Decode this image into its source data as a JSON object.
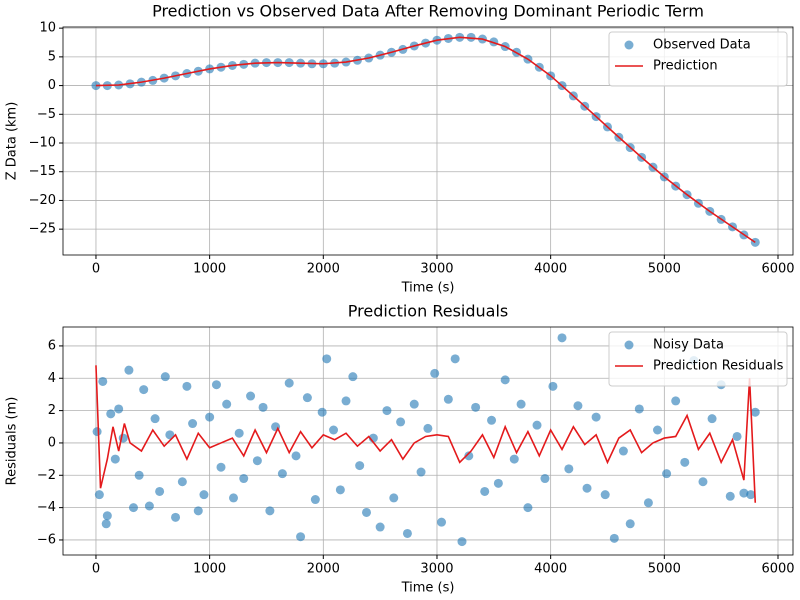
{
  "chart_data": [
    {
      "type": "combo",
      "title": "Prediction vs Observed Data After Removing Dominant Periodic Term",
      "x_label": "Time (s)",
      "y_label": "Z Data (km)",
      "xlim": [
        -290,
        6132
      ],
      "ylim": [
        -29.5,
        10.2
      ],
      "xticks": [
        0,
        1000,
        2000,
        3000,
        4000,
        5000,
        6000
      ],
      "yticks": [
        {
          "value": -25,
          "label": "−25"
        },
        {
          "value": -20,
          "label": "−20"
        },
        {
          "value": -15,
          "label": "−15"
        },
        {
          "value": -10,
          "label": "−10"
        },
        {
          "value": -5,
          "label": "−5"
        },
        0,
        5,
        10
      ],
      "grid": true,
      "legend": "upper-right",
      "series": [
        {
          "name": "Observed Data",
          "kind": "scatter",
          "color": "#1f77b4",
          "x": [
            0,
            100,
            200,
            300,
            400,
            500,
            600,
            700,
            800,
            900,
            1000,
            1100,
            1200,
            1300,
            1400,
            1500,
            1600,
            1700,
            1800,
            1900,
            2000,
            2100,
            2200,
            2300,
            2400,
            2500,
            2600,
            2700,
            2800,
            2900,
            3000,
            3100,
            3200,
            3300,
            3400,
            3500,
            3600,
            3700,
            3800,
            3900,
            4000,
            4100,
            4200,
            4300,
            4400,
            4500,
            4600,
            4700,
            4800,
            4900,
            5000,
            5100,
            5200,
            5300,
            5400,
            5500,
            5600,
            5700,
            5800
          ],
          "values": [
            0,
            0.0,
            0.1,
            0.3,
            0.6,
            0.9,
            1.3,
            1.7,
            2.1,
            2.5,
            2.9,
            3.2,
            3.5,
            3.7,
            3.9,
            4.0,
            4.0,
            4.0,
            3.9,
            3.8,
            3.8,
            3.9,
            4.1,
            4.4,
            4.8,
            5.3,
            5.8,
            6.3,
            6.9,
            7.4,
            7.9,
            8.2,
            8.4,
            8.4,
            8.1,
            7.6,
            6.8,
            5.8,
            4.6,
            3.2,
            1.7,
            0.0,
            -1.8,
            -3.6,
            -5.4,
            -7.2,
            -9.0,
            -10.8,
            -12.5,
            -14.2,
            -15.9,
            -17.5,
            -19.0,
            -20.5,
            -21.9,
            -23.3,
            -24.6,
            -26.0,
            -27.3
          ]
        },
        {
          "name": "Prediction",
          "kind": "line",
          "color": "#e41a1c",
          "x": [
            0,
            200,
            400,
            600,
            800,
            1000,
            1200,
            1400,
            1600,
            1800,
            2000,
            2200,
            2400,
            2600,
            2800,
            3000,
            3200,
            3400,
            3600,
            3800,
            4000,
            4200,
            4400,
            4600,
            4800,
            5000,
            5200,
            5400,
            5600,
            5800
          ],
          "values": [
            0,
            0.1,
            0.6,
            1.3,
            2.1,
            2.9,
            3.5,
            3.9,
            4.0,
            3.9,
            3.8,
            4.1,
            4.8,
            5.8,
            6.9,
            7.9,
            8.4,
            8.1,
            6.8,
            4.6,
            1.7,
            -1.8,
            -5.4,
            -9.0,
            -12.5,
            -15.9,
            -19.0,
            -21.9,
            -24.6,
            -27.3
          ]
        }
      ]
    },
    {
      "type": "combo",
      "title": "Prediction Residuals",
      "x_label": "Time (s)",
      "y_label": "Residuals (m)",
      "xlim": [
        -290,
        6132
      ],
      "ylim": [
        -6.93,
        7.17
      ],
      "xticks": [
        0,
        1000,
        2000,
        3000,
        4000,
        5000,
        6000
      ],
      "yticks": [
        {
          "value": -6,
          "label": "−6"
        },
        {
          "value": -4,
          "label": "−4"
        },
        {
          "value": -2,
          "label": "−2"
        },
        0,
        2,
        4,
        6
      ],
      "grid": true,
      "legend": "upper-right",
      "series": [
        {
          "name": "Noisy Data",
          "kind": "scatter",
          "color": "#1f77b4",
          "x": [
            10,
            30,
            60,
            90,
            100,
            130,
            170,
            200,
            240,
            290,
            330,
            380,
            420,
            470,
            520,
            560,
            610,
            650,
            700,
            760,
            800,
            850,
            900,
            950,
            1000,
            1060,
            1100,
            1150,
            1210,
            1260,
            1300,
            1360,
            1420,
            1470,
            1530,
            1580,
            1640,
            1700,
            1760,
            1800,
            1860,
            1930,
            1990,
            2030,
            2090,
            2150,
            2200,
            2260,
            2320,
            2380,
            2440,
            2500,
            2560,
            2620,
            2680,
            2740,
            2800,
            2860,
            2920,
            2980,
            3040,
            3100,
            3160,
            3220,
            3280,
            3340,
            3420,
            3480,
            3540,
            3600,
            3680,
            3740,
            3800,
            3880,
            3950,
            4020,
            4100,
            4160,
            4240,
            4320,
            4400,
            4480,
            4560,
            4640,
            4700,
            4780,
            4860,
            4940,
            5020,
            5100,
            5180,
            5260,
            5340,
            5420,
            5500,
            5580,
            5640,
            5700,
            5760,
            5800
          ],
          "values": [
            0.7,
            -3.2,
            3.8,
            -5.0,
            -4.5,
            1.8,
            -1.0,
            2.1,
            0.3,
            4.5,
            -4.0,
            -2.0,
            3.3,
            -3.9,
            1.5,
            -3.0,
            4.1,
            0.5,
            -4.6,
            -2.4,
            3.5,
            1.2,
            -4.2,
            -3.2,
            1.6,
            3.6,
            -1.5,
            2.4,
            -3.4,
            0.6,
            -2.2,
            2.9,
            -1.1,
            2.2,
            -4.2,
            1.0,
            -1.9,
            3.7,
            -0.8,
            -5.8,
            2.8,
            -3.5,
            1.9,
            5.2,
            0.8,
            -2.9,
            2.6,
            4.1,
            -1.4,
            -4.3,
            0.3,
            -5.2,
            2.0,
            -3.4,
            1.3,
            -5.6,
            2.4,
            -1.8,
            0.9,
            4.3,
            -4.9,
            2.7,
            5.2,
            -6.1,
            -0.8,
            2.2,
            -3.0,
            1.4,
            -2.5,
            3.9,
            -1.0,
            2.4,
            -4.0,
            1.1,
            -2.2,
            3.5,
            6.5,
            -1.6,
            2.3,
            -2.8,
            1.6,
            -3.2,
            -5.9,
            -0.5,
            -5.0,
            2.1,
            -3.7,
            0.8,
            -1.9,
            2.6,
            -1.2,
            5.1,
            -2.4,
            1.5,
            3.6,
            -3.3,
            0.4,
            -3.1,
            -3.2,
            1.9
          ]
        },
        {
          "name": "Prediction Residuals",
          "kind": "line",
          "color": "#e41a1c",
          "x": [
            0,
            40,
            100,
            150,
            200,
            250,
            300,
            400,
            500,
            600,
            700,
            800,
            900,
            1000,
            1100,
            1200,
            1300,
            1400,
            1500,
            1600,
            1700,
            1800,
            1900,
            2000,
            2100,
            2200,
            2300,
            2400,
            2500,
            2600,
            2700,
            2800,
            2900,
            3000,
            3100,
            3200,
            3300,
            3400,
            3500,
            3600,
            3700,
            3800,
            3900,
            4000,
            4100,
            4200,
            4300,
            4400,
            4500,
            4600,
            4700,
            4800,
            4900,
            5000,
            5100,
            5200,
            5300,
            5400,
            5500,
            5600,
            5700,
            5750,
            5800
          ],
          "values": [
            4.8,
            -2.8,
            -1.0,
            1.0,
            -0.5,
            1.2,
            0.0,
            -0.5,
            0.8,
            -0.2,
            0.5,
            -1.0,
            0.6,
            -0.3,
            0.0,
            0.3,
            -0.8,
            0.8,
            -0.6,
            0.9,
            -0.6,
            0.7,
            -0.3,
            0.5,
            0.2,
            0.6,
            -0.2,
            0.4,
            -0.5,
            0.2,
            -1.0,
            0.0,
            0.4,
            0.5,
            0.4,
            -1.2,
            -0.5,
            0.5,
            -0.9,
            1.0,
            -0.6,
            0.7,
            -0.8,
            0.8,
            -0.4,
            1.0,
            -0.1,
            0.5,
            -1.2,
            0.3,
            0.8,
            -0.6,
            0.0,
            0.3,
            0.4,
            1.7,
            -0.4,
            0.6,
            -1.2,
            0.2,
            -2.3,
            4.0,
            -3.7
          ]
        }
      ]
    }
  ]
}
